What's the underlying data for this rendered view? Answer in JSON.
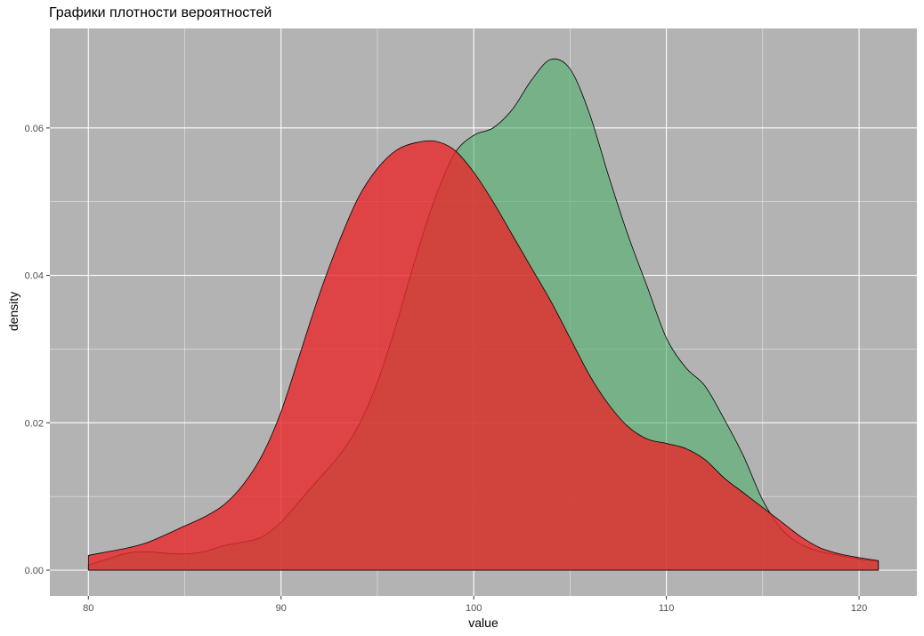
{
  "chart_data": {
    "type": "area",
    "title": "Графики плотности вероятностей",
    "xlabel": "value",
    "ylabel": "density",
    "xlim": [
      78,
      123
    ],
    "ylim": [
      -0.0035,
      0.0735
    ],
    "x_ticks": [
      80,
      90,
      100,
      110,
      120
    ],
    "x_tick_labels": [
      "80",
      "90",
      "100",
      "110",
      "120"
    ],
    "y_ticks": [
      0.0,
      0.02,
      0.04,
      0.06
    ],
    "y_tick_labels": [
      "0.00",
      "0.02",
      "0.04",
      "0.06"
    ],
    "grid": true,
    "legend": "none",
    "colors": {
      "panel": "#b3b3b3",
      "grid": "#ffffff"
    },
    "series": [
      {
        "color": "#4daf6a",
        "opacity": 0.6,
        "x": [
          80,
          81,
          82,
          83,
          84,
          85,
          86,
          87,
          88,
          89,
          90,
          91,
          92,
          93,
          94,
          95,
          96,
          97,
          98,
          99,
          100,
          101,
          102,
          103,
          104,
          105,
          106,
          107,
          108,
          109,
          110,
          111,
          112,
          113,
          114,
          115,
          116,
          117,
          118,
          119,
          120,
          121
        ],
        "y": [
          0.0007,
          0.0015,
          0.0023,
          0.0025,
          0.0023,
          0.0022,
          0.0025,
          0.0033,
          0.0038,
          0.0045,
          0.0065,
          0.0095,
          0.0125,
          0.0155,
          0.0195,
          0.0255,
          0.0335,
          0.0425,
          0.0505,
          0.0565,
          0.059,
          0.06,
          0.0625,
          0.0665,
          0.0693,
          0.068,
          0.062,
          0.0535,
          0.0455,
          0.0385,
          0.0315,
          0.0275,
          0.025,
          0.0205,
          0.0155,
          0.0095,
          0.0055,
          0.0035,
          0.0025,
          0.002,
          0.0015,
          0.0012
        ]
      },
      {
        "color": "#e8282a",
        "opacity": 0.8,
        "x": [
          80,
          81,
          82,
          83,
          84,
          85,
          86,
          87,
          88,
          89,
          90,
          91,
          92,
          93,
          94,
          95,
          96,
          97,
          98,
          99,
          100,
          101,
          102,
          103,
          104,
          105,
          106,
          107,
          108,
          109,
          110,
          111,
          112,
          113,
          114,
          115,
          116,
          117,
          118,
          119,
          120,
          121
        ],
        "y": [
          0.002,
          0.0025,
          0.003,
          0.0037,
          0.0048,
          0.006,
          0.0072,
          0.0088,
          0.0115,
          0.0155,
          0.0215,
          0.0295,
          0.0375,
          0.0445,
          0.0505,
          0.0545,
          0.057,
          0.058,
          0.0582,
          0.057,
          0.054,
          0.05,
          0.0455,
          0.041,
          0.0365,
          0.0315,
          0.0265,
          0.0225,
          0.0195,
          0.0178,
          0.0172,
          0.0165,
          0.015,
          0.0125,
          0.0105,
          0.0085,
          0.0065,
          0.0045,
          0.003,
          0.0022,
          0.0017,
          0.0013
        ]
      }
    ]
  }
}
